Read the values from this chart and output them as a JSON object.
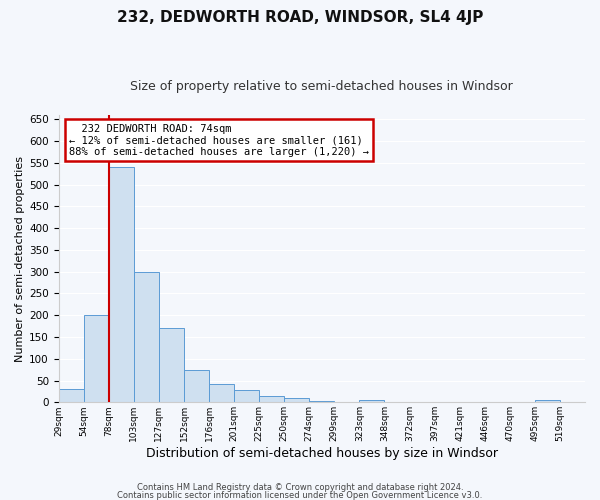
{
  "title": "232, DEDWORTH ROAD, WINDSOR, SL4 4JP",
  "subtitle": "Size of property relative to semi-detached houses in Windsor",
  "xlabel": "Distribution of semi-detached houses by size in Windsor",
  "ylabel": "Number of semi-detached properties",
  "bar_values": [
    30,
    200,
    540,
    300,
    170,
    75,
    42,
    28,
    15,
    10,
    2,
    0,
    5,
    0,
    0,
    0,
    0,
    0,
    0,
    5,
    0
  ],
  "bar_labels": [
    "29sqm",
    "54sqm",
    "78sqm",
    "103sqm",
    "127sqm",
    "152sqm",
    "176sqm",
    "201sqm",
    "225sqm",
    "250sqm",
    "274sqm",
    "299sqm",
    "323sqm",
    "348sqm",
    "372sqm",
    "397sqm",
    "421sqm",
    "446sqm",
    "470sqm",
    "495sqm",
    "519sqm"
  ],
  "bar_color": "#cfe0f0",
  "bar_edge_color": "#5b9bd5",
  "red_line_x": 2,
  "annotation_title": "232 DEDWORTH ROAD: 74sqm",
  "annotation_line1": "← 12% of semi-detached houses are smaller (161)",
  "annotation_line2": "88% of semi-detached houses are larger (1,220) →",
  "annotation_box_color": "#ffffff",
  "annotation_box_edge": "#cc0000",
  "ylim": [
    0,
    660
  ],
  "yticks": [
    0,
    50,
    100,
    150,
    200,
    250,
    300,
    350,
    400,
    450,
    500,
    550,
    600,
    650
  ],
  "footer_line1": "Contains HM Land Registry data © Crown copyright and database right 2024.",
  "footer_line2": "Contains public sector information licensed under the Open Government Licence v3.0.",
  "background_color": "#f4f7fc",
  "plot_bg_color": "#f4f7fc",
  "grid_color": "#ffffff",
  "title_fontsize": 11,
  "subtitle_fontsize": 9,
  "ylabel_fontsize": 8,
  "xlabel_fontsize": 9
}
